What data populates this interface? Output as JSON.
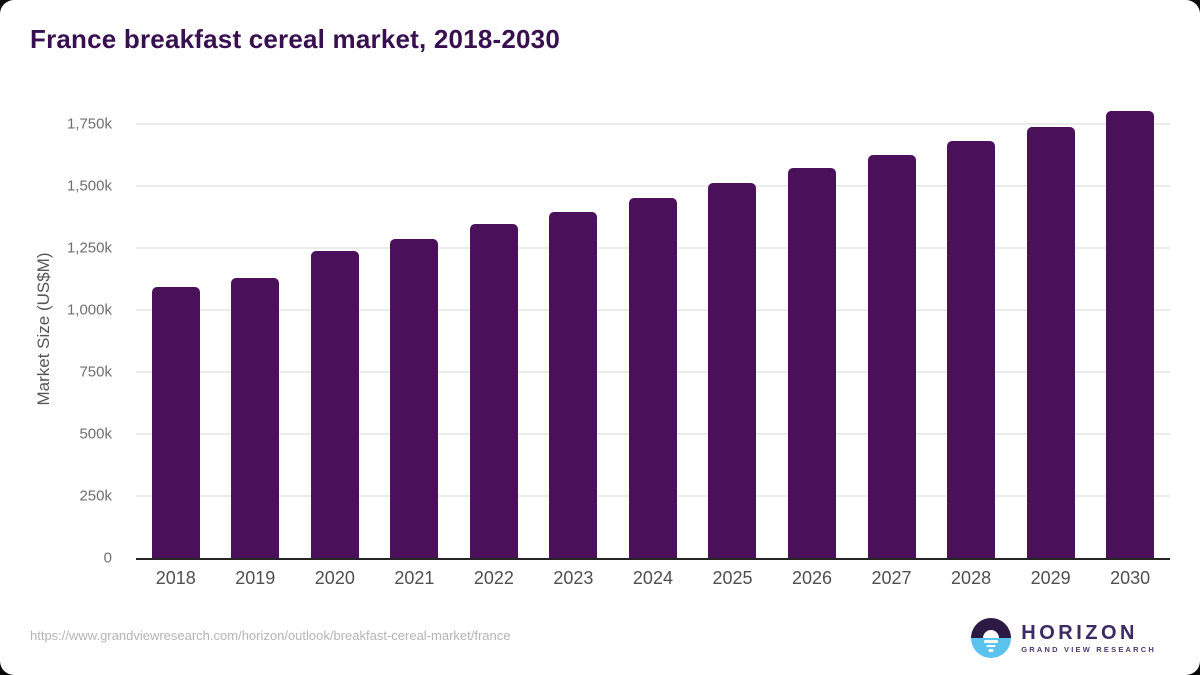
{
  "title": "France breakfast cereal market, 2018-2030",
  "chart_data": {
    "type": "bar",
    "categories": [
      "2018",
      "2019",
      "2020",
      "2021",
      "2022",
      "2023",
      "2024",
      "2025",
      "2026",
      "2027",
      "2028",
      "2029",
      "2030"
    ],
    "values": [
      1090,
      1130,
      1235,
      1285,
      1345,
      1395,
      1450,
      1510,
      1570,
      1625,
      1680,
      1735,
      1800
    ],
    "unit": "k (thousand US$M)",
    "title": "France breakfast cereal market, 2018-2030",
    "xlabel": "",
    "ylabel": "Market Size (US$M)",
    "ylim": [
      0,
      1845
    ],
    "yticks": [
      0,
      250,
      500,
      750,
      1000,
      1250,
      1500,
      1750
    ],
    "ytick_labels": [
      "0",
      "250k",
      "500k",
      "750k",
      "1,000k",
      "1,250k",
      "1,500k",
      "1,750k"
    ],
    "grid": "horizontal",
    "legend": "none",
    "bar_color": "#4a1059"
  },
  "colors": {
    "title": "#38104f",
    "bar": "#4a1059",
    "gridline": "#ebebeb",
    "axis_line": "#262626",
    "y_tick_text": "#6f6f6f",
    "x_tick_text": "#4f4f4f",
    "url_text": "#b5b5b5",
    "logo_purple": "#3b2a63",
    "logo_dark_half": "#2c1a45",
    "logo_blue_half": "#5cc3ee"
  },
  "footer": {
    "source_url": "https://www.grandviewresearch.com/horizon/outlook/breakfast-cereal-market/france",
    "logo": {
      "name": "HORIZON",
      "subtitle": "GRAND VIEW RESEARCH",
      "icon": "horizon-sunset-circle-icon"
    }
  }
}
